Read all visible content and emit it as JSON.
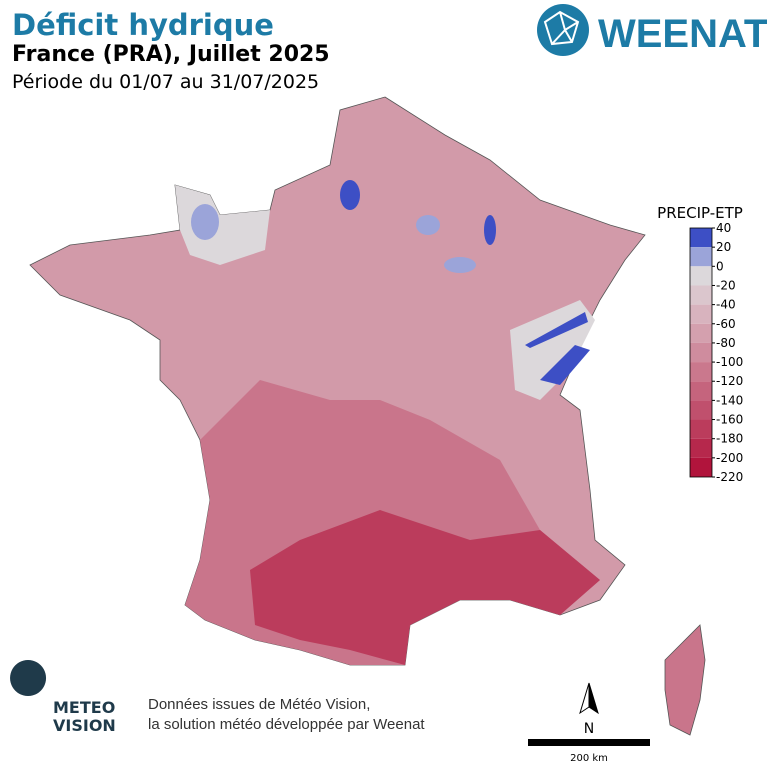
{
  "header": {
    "title": "Déficit hydrique",
    "subtitle": "France (PRA), Juillet 2025",
    "period": "Période du 01/07 au 31/07/2025"
  },
  "logo": {
    "text": "WEENAT"
  },
  "legend": {
    "title": "PRECIP-ETP",
    "ticks": [
      40,
      20,
      0,
      -20,
      -40,
      -60,
      -80,
      -100,
      -120,
      -140,
      -160,
      -180,
      -200,
      -220
    ],
    "colors": [
      "#3d4fc5",
      "#9ba4d9",
      "#dcd8db",
      "#dbc6cd",
      "#d8b3be",
      "#d4a0ae",
      "#cf8c9e",
      "#ca788d",
      "#c5647d",
      "#c0506d",
      "#bb3c5c",
      "#b6284c",
      "#b1143c"
    ]
  },
  "footer": {
    "brand_top": "METEO",
    "brand_bottom": "VISION",
    "source_line1": "Données issues de Météo Vision,",
    "source_line2": "la solution météo développée par Weenat"
  },
  "scale": {
    "north": "N",
    "label": "200 km"
  }
}
